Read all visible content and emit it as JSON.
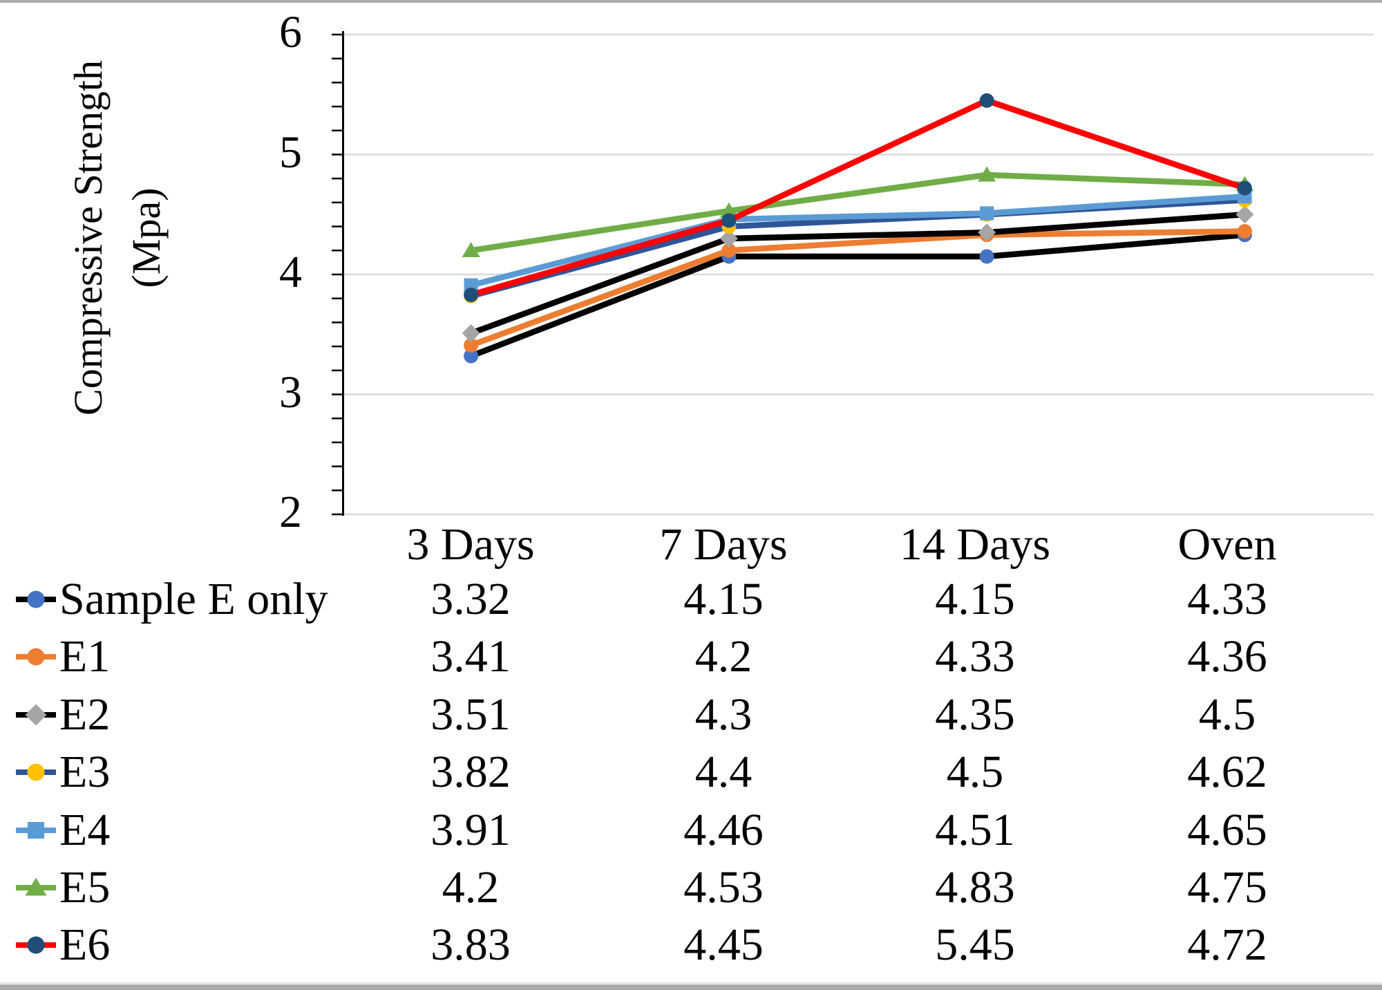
{
  "chart_data": {
    "type": "line",
    "title": "",
    "ylabel_line1": "Compressive Strength",
    "ylabel_line2": "(Mpa)",
    "categories": [
      "3 Days",
      "7 Days",
      "14 Days",
      "Oven"
    ],
    "y_axis": {
      "min": 2,
      "max": 6,
      "major": 1,
      "minor": 0.2,
      "ticks": [
        "6",
        "5",
        "4",
        "3",
        "2"
      ]
    },
    "grid": "horizontal-major",
    "gridline_color": "#D9D9D9",
    "axis_color": "#000000",
    "legend_position": "left-of-data-table-below-plot",
    "series": [
      {
        "name": "Sample E only",
        "values": [
          3.32,
          4.15,
          4.15,
          4.33
        ],
        "display": [
          "3.32",
          "4.15",
          "4.15",
          "4.33"
        ],
        "line_color": "#000000",
        "marker_color": "#4472C4",
        "marker": "circle"
      },
      {
        "name": "E1",
        "values": [
          3.41,
          4.2,
          4.33,
          4.36
        ],
        "display": [
          "3.41",
          "4.2",
          "4.33",
          "4.36"
        ],
        "line_color": "#ED7D31",
        "marker_color": "#ED7D31",
        "marker": "circle"
      },
      {
        "name": "E2",
        "values": [
          3.51,
          4.3,
          4.35,
          4.5
        ],
        "display": [
          "3.51",
          "4.3",
          "4.35",
          "4.5"
        ],
        "line_color": "#000000",
        "marker_color": "#A5A5A5",
        "marker": "diamond"
      },
      {
        "name": "E3",
        "values": [
          3.82,
          4.4,
          4.5,
          4.62
        ],
        "display": [
          "3.82",
          "4.4",
          "4.5",
          "4.62"
        ],
        "line_color": "#2F5597",
        "marker_color": "#FFC000",
        "marker": "circle"
      },
      {
        "name": "E4",
        "values": [
          3.91,
          4.46,
          4.51,
          4.65
        ],
        "display": [
          "3.91",
          "4.46",
          "4.51",
          "4.65"
        ],
        "line_color": "#5B9BD5",
        "marker_color": "#5B9BD5",
        "marker": "square"
      },
      {
        "name": "E5",
        "values": [
          4.2,
          4.53,
          4.83,
          4.75
        ],
        "display": [
          "4.2",
          "4.53",
          "4.83",
          "4.75"
        ],
        "line_color": "#70AD47",
        "marker_color": "#70AD47",
        "marker": "triangle"
      },
      {
        "name": "E6",
        "values": [
          3.83,
          4.45,
          5.45,
          4.72
        ],
        "display": [
          "3.83",
          "4.45",
          "5.45",
          "4.72"
        ],
        "line_color": "#FF0000",
        "marker_color": "#1F4E79",
        "marker": "circle"
      }
    ]
  },
  "decor": {
    "top_border_color": "#ACACAC",
    "bottom_border_color": "#ACACAC",
    "bottom_thin_line_color": "#DCDCDC"
  }
}
